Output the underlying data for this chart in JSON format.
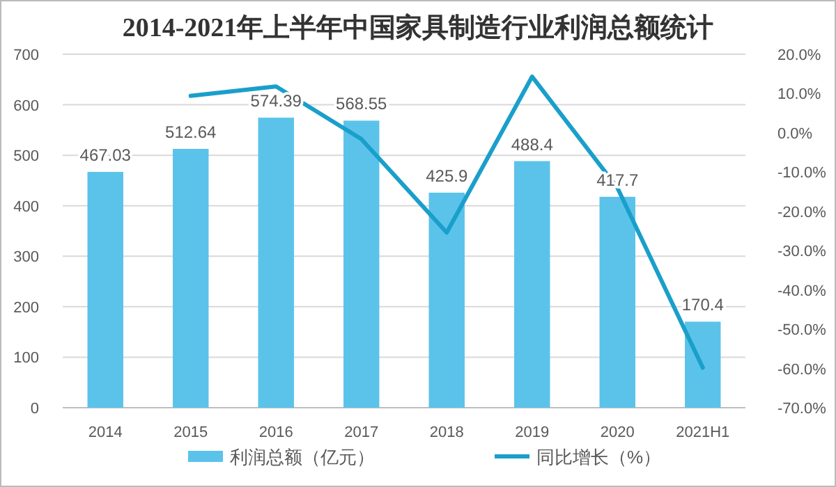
{
  "chart_data": {
    "type": "bar",
    "title": "2014-2021年上半年中国家具制造行业利润总额统计",
    "categories": [
      "2014",
      "2015",
      "2016",
      "2017",
      "2018",
      "2019",
      "2020",
      "2021H1"
    ],
    "series": [
      {
        "name": "利润总额（亿元）",
        "color": "#5bc3ea",
        "values": [
          467.03,
          512.64,
          574.39,
          568.55,
          425.9,
          488.4,
          417.7,
          170.4
        ],
        "value_labels": [
          "467.03",
          "512.64",
          "574.39",
          "568.55",
          "425.9",
          "488.4",
          "417.7",
          "170.4"
        ]
      },
      {
        "name": "同比增长（%）",
        "type": "line",
        "axis": "y2",
        "color": "#1a9fcb",
        "values": [
          null,
          9.4,
          11.8,
          -1.6,
          -25.4,
          14.3,
          -14.0,
          -59.8
        ]
      }
    ],
    "ylim": [
      0,
      700
    ],
    "yticks": [
      0,
      100,
      200,
      300,
      400,
      500,
      600,
      700
    ],
    "y2lim": [
      -70,
      20
    ],
    "y2ticks": [
      {
        "value": -70,
        "label": "-70.0%"
      },
      {
        "value": -60,
        "label": "-60.0%"
      },
      {
        "value": -50,
        "label": "-50.0%"
      },
      {
        "value": -40,
        "label": "-40.0%"
      },
      {
        "value": -30,
        "label": "-30.0%"
      },
      {
        "value": -20,
        "label": "-20.0%"
      },
      {
        "value": -10,
        "label": "-10.0%"
      },
      {
        "value": 0,
        "label": "0.0%"
      },
      {
        "value": 10,
        "label": "10.0%"
      },
      {
        "value": 20,
        "label": "20.0%"
      }
    ],
    "grid": "y",
    "legend": "bottom",
    "marker": "none"
  }
}
